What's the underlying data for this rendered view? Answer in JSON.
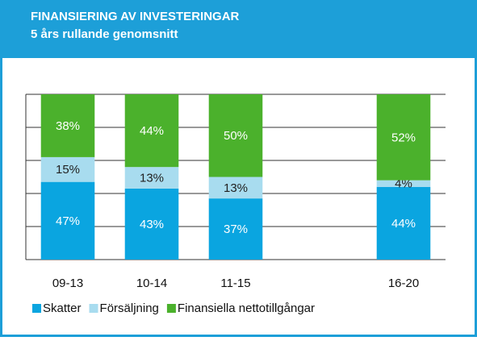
{
  "chart_data": {
    "type": "stacked_bar",
    "title": "FINANSIERING AV INVESTERINGAR",
    "subtitle": "5 års rullande genomsnitt",
    "categories": [
      "09-13",
      "10-14",
      "11-15",
      null,
      "16-20"
    ],
    "series": [
      {
        "name": "Skatter",
        "color": "#0aa5e0",
        "label_color": "#ffffff",
        "values": [
          47,
          43,
          37,
          null,
          44
        ],
        "value_labels": [
          "47%",
          "43%",
          "37%",
          null,
          "44%"
        ]
      },
      {
        "name": "Försäljning",
        "color": "#a8dcef",
        "label_color": "#222222",
        "values": [
          15,
          13,
          13,
          null,
          4
        ],
        "value_labels": [
          "15%",
          "13%",
          "13%",
          null,
          "4%"
        ]
      },
      {
        "name": "Finansiella nettotillgångar",
        "color": "#4bb12c",
        "label_color": "#ffffff",
        "values": [
          38,
          44,
          50,
          null,
          52
        ],
        "value_labels": [
          "38%",
          "44%",
          "50%",
          null,
          "52%"
        ]
      }
    ],
    "ylim": [
      0,
      100
    ],
    "yticks": [
      0,
      20,
      40,
      60,
      80,
      100
    ],
    "grid": true
  }
}
